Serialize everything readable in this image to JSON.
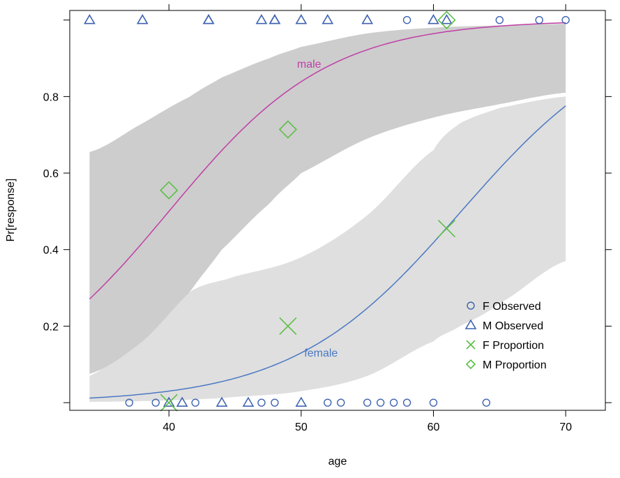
{
  "chart_data": {
    "type": "line",
    "xlabel": "age",
    "ylabel": "Pr[response]",
    "xlim": [
      32.5,
      73
    ],
    "ylim": [
      -0.02,
      1.025
    ],
    "x_ticks": [
      40,
      50,
      60,
      70
    ],
    "x_tick_labels": [
      "40",
      "50",
      "60",
      "70"
    ],
    "y_ticks": [
      0.2,
      0.4,
      0.6,
      0.8
    ],
    "y_tick_labels": [
      "0.2",
      "0.4",
      "0.6",
      "0.8"
    ],
    "colors": {
      "observed": "#3f63b0",
      "female_line": "#4a78c2",
      "male_line": "#c03ea6",
      "proportion": "#5cbf46",
      "male_band": "#cdcdcd",
      "female_band": "#dfdfdf"
    },
    "curves": [
      {
        "name": "male",
        "label": "male",
        "label_at": [
          50.6,
          0.875
        ],
        "midpoint": 40.0,
        "slope": 0.165,
        "xrange": [
          34,
          70
        ]
      },
      {
        "name": "female",
        "label": "female",
        "label_at": [
          51.5,
          0.12
        ],
        "midpoint": 62.1,
        "slope": 0.157,
        "xrange": [
          34,
          70
        ]
      }
    ],
    "bands": [
      {
        "name": "female",
        "x": [
          34,
          38,
          41.6,
          45,
          50,
          55,
          60,
          62,
          65,
          70
        ],
        "lower": [
          0.002,
          0.004,
          0.008,
          0.015,
          0.03,
          0.07,
          0.16,
          0.2,
          0.26,
          0.37
        ],
        "upper": [
          0.07,
          0.18,
          0.29,
          0.33,
          0.38,
          0.49,
          0.66,
          0.73,
          0.77,
          0.8
        ]
      },
      {
        "name": "male",
        "x": [
          34,
          38,
          41.6,
          44,
          47.6,
          50,
          55,
          60,
          65,
          70
        ],
        "lower": [
          0.075,
          0.16,
          0.29,
          0.4,
          0.52,
          0.6,
          0.69,
          0.745,
          0.78,
          0.81
        ],
        "upper": [
          0.655,
          0.73,
          0.8,
          0.85,
          0.9,
          0.93,
          0.965,
          0.98,
          0.986,
          0.99
        ]
      }
    ],
    "series": [
      {
        "name": "F Observed",
        "marker": "circle",
        "points": [
          [
            58,
            1
          ],
          [
            65,
            1
          ],
          [
            68,
            1
          ],
          [
            70,
            1
          ],
          [
            37,
            0
          ],
          [
            39,
            0
          ],
          [
            42,
            0
          ],
          [
            47,
            0
          ],
          [
            48,
            0
          ],
          [
            52,
            0
          ],
          [
            53,
            0
          ],
          [
            55,
            0
          ],
          [
            56,
            0
          ],
          [
            57,
            0
          ],
          [
            58,
            0
          ],
          [
            60,
            0
          ],
          [
            64,
            0
          ]
        ]
      },
      {
        "name": "M Observed",
        "marker": "triangle",
        "points": [
          [
            34,
            1
          ],
          [
            38,
            1
          ],
          [
            43,
            1
          ],
          [
            43,
            1
          ],
          [
            47,
            1
          ],
          [
            48,
            1
          ],
          [
            48,
            1
          ],
          [
            50,
            1
          ],
          [
            52,
            1
          ],
          [
            55,
            1
          ],
          [
            60,
            1
          ],
          [
            61,
            1
          ],
          [
            40,
            0
          ],
          [
            41,
            0
          ],
          [
            44,
            0
          ],
          [
            46,
            0
          ],
          [
            50,
            0
          ]
        ]
      },
      {
        "name": "F Proportion",
        "marker": "x",
        "points": [
          [
            40,
            0
          ],
          [
            49,
            0.2
          ],
          [
            61,
            0.455
          ]
        ]
      },
      {
        "name": "M Proportion",
        "marker": "diamond",
        "points": [
          [
            40,
            0.555
          ],
          [
            49,
            0.714
          ],
          [
            61,
            1.0
          ]
        ]
      }
    ],
    "legend": {
      "placement": "bottom-right",
      "entries": [
        "F Observed",
        "M Observed",
        "F Proportion",
        "M Proportion"
      ]
    }
  }
}
